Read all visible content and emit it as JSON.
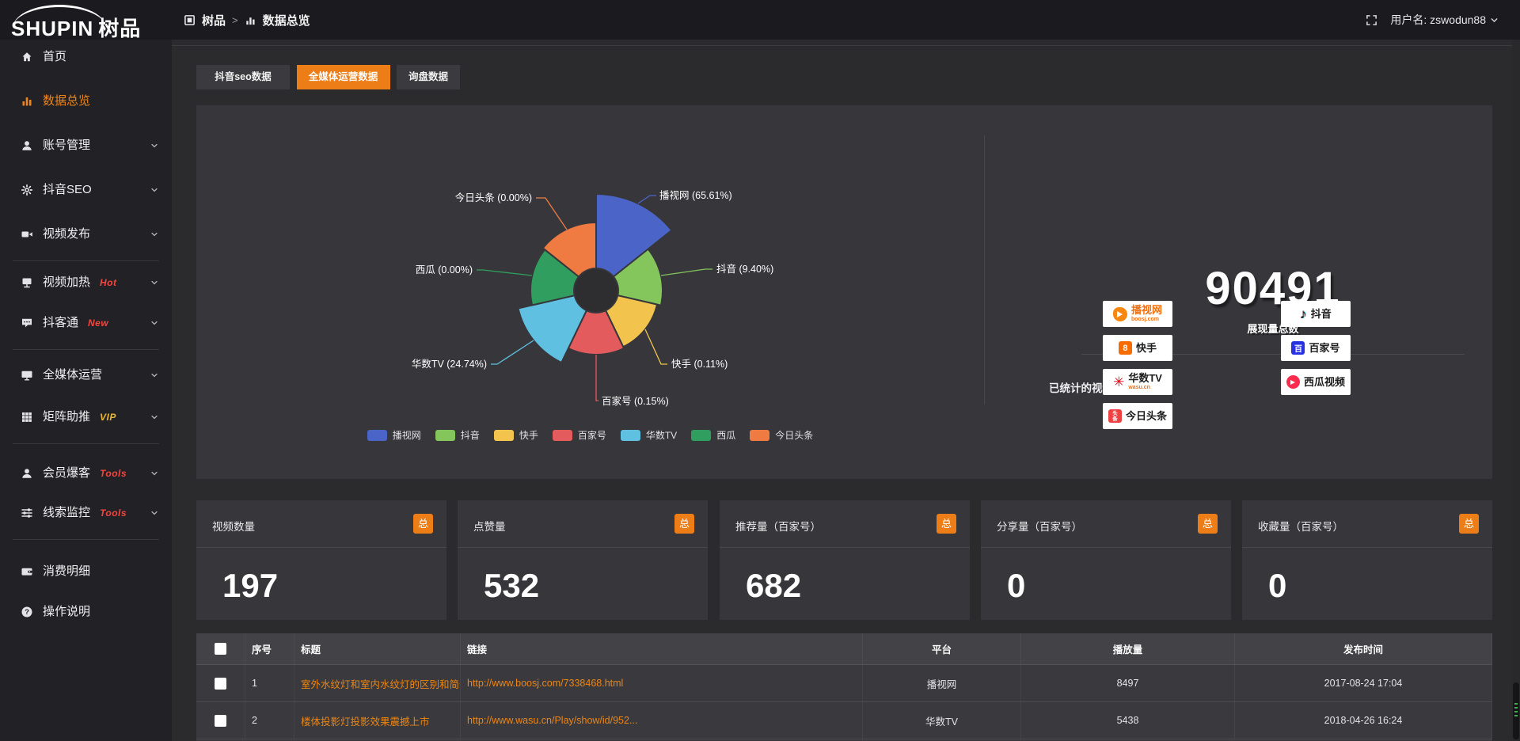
{
  "header": {
    "logo_main": "SHUPIN",
    "logo_cjk": "树品",
    "breadcrumb": {
      "root": "树品",
      "current": "数据总览"
    },
    "username": "用户名: zswodun88"
  },
  "sidebar": {
    "items": [
      {
        "slug": "home",
        "icon": "home",
        "label": "首页"
      },
      {
        "slug": "data-overview",
        "icon": "bar-chart",
        "label": "数据总览",
        "active": true
      },
      {
        "slug": "account-manage",
        "icon": "user",
        "label": "账号管理",
        "chevron": true
      },
      {
        "slug": "douyin-seo",
        "icon": "gear",
        "label": "抖音SEO",
        "chevron": true
      },
      {
        "slug": "video-publish",
        "icon": "video",
        "label": "视频发布",
        "chevron": true,
        "divider_after": true
      },
      {
        "slug": "video-heat",
        "icon": "heat",
        "label": "视频加热",
        "badge": "Hot",
        "badge_color": "#f5453d",
        "chevron": true
      },
      {
        "slug": "douketong",
        "icon": "chat",
        "label": "抖客通",
        "badge": "New",
        "badge_color": "#f5453d",
        "chevron": true,
        "divider_after": true
      },
      {
        "slug": "media-operation",
        "icon": "monitor",
        "label": "全媒体运营",
        "chevron": true
      },
      {
        "slug": "matrix-boost",
        "icon": "grid",
        "label": "矩阵助推",
        "badge": "VIP",
        "badge_color": "#e9b63a",
        "chevron": true,
        "divider_after": true
      },
      {
        "slug": "member-baoke",
        "icon": "user",
        "label": "会员爆客",
        "badge": "Tools",
        "badge_color": "#f5453d",
        "chevron": true
      },
      {
        "slug": "lead-monitor",
        "icon": "sliders",
        "label": "线索监控",
        "badge": "Tools",
        "badge_color": "#f5453d",
        "chevron": true,
        "divider_after": true
      },
      {
        "slug": "expense-detail",
        "icon": "wallet",
        "label": "消费明细"
      },
      {
        "slug": "operation-guide",
        "icon": "question",
        "label": "操作说明"
      }
    ]
  },
  "tabs": [
    {
      "slug": "douyin-seo-data",
      "label": "抖音seo数据"
    },
    {
      "slug": "media-operation-data",
      "label": "全媒体运营数据",
      "active": true
    },
    {
      "slug": "inquiry-data",
      "label": "询盘数据"
    }
  ],
  "chart_data": {
    "type": "pie",
    "subtype": "nightingale-rose",
    "legend_position": "bottom",
    "slices": [
      {
        "name": "播视网",
        "percent": 65.61,
        "label": "播视网 (65.61%)",
        "color": "#4b64c8"
      },
      {
        "name": "抖音",
        "percent": 9.4,
        "label": "抖音 (9.40%)",
        "color": "#84c55c"
      },
      {
        "name": "快手",
        "percent": 0.11,
        "label": "快手 (0.11%)",
        "color": "#f2c44e"
      },
      {
        "name": "百家号",
        "percent": 0.15,
        "label": "百家号 (0.15%)",
        "color": "#e45b5e"
      },
      {
        "name": "华数TV",
        "percent": 24.74,
        "label": "华数TV (24.74%)",
        "color": "#5fc0e1"
      },
      {
        "name": "西瓜",
        "percent": 0.0,
        "label": "西瓜 (0.00%)",
        "color": "#2f9e5e"
      },
      {
        "name": "今日头条",
        "percent": 0.0,
        "label": "今日头条 (0.00%)",
        "color": "#ef7b43"
      }
    ],
    "legend": [
      "播视网",
      "抖音",
      "快手",
      "百家号",
      "华数TV",
      "西瓜",
      "今日头条"
    ]
  },
  "summary": {
    "total_value": "90491",
    "total_label": "展现量总数",
    "platforms_title": "已统计的视频平台:",
    "platforms_left": [
      {
        "style": "boosj",
        "name": "播视网",
        "sub": "boosj.com"
      },
      {
        "style": "kuaishou",
        "name": "快手"
      },
      {
        "style": "wasu",
        "name": "华数TV",
        "sub": "wasu.cn"
      },
      {
        "style": "toutiao",
        "name": "今日头条"
      }
    ],
    "platforms_right": [
      {
        "style": "douyin",
        "name": "抖音"
      },
      {
        "style": "baijia",
        "name": "百家号"
      },
      {
        "style": "xigua",
        "name": "西瓜视频"
      }
    ]
  },
  "stat_cards": [
    {
      "label": "视频数量",
      "badge": "总",
      "value": "197"
    },
    {
      "label": "点赞量",
      "badge": "总",
      "value": "532"
    },
    {
      "label": "推荐量（百家号）",
      "badge": "总",
      "value": "682"
    },
    {
      "label": "分享量（百家号）",
      "badge": "总",
      "value": "0"
    },
    {
      "label": "收藏量（百家号）",
      "badge": "总",
      "value": "0"
    }
  ],
  "table": {
    "headers": [
      "序号",
      "标题",
      "链接",
      "平台",
      "播放量",
      "发布时间"
    ],
    "rows": [
      {
        "seq": "1",
        "title": "室外水纹灯和室内水纹灯的区别和简介",
        "link": "http://www.boosj.com/7338468.html",
        "platform": "播视网",
        "views": "8497",
        "time": "2017-08-24 17:04"
      },
      {
        "seq": "2",
        "title": "楼体投影灯投影效果震撼上市",
        "link": "http://www.wasu.cn/Play/show/id/952...",
        "platform": "华数TV",
        "views": "5438",
        "time": "2018-04-26 16:24"
      }
    ]
  },
  "colors": {
    "accent": "#ed7d16",
    "link": "#ed8512",
    "badge_hot": "#f5453d",
    "badge_vip": "#e9b63a"
  }
}
